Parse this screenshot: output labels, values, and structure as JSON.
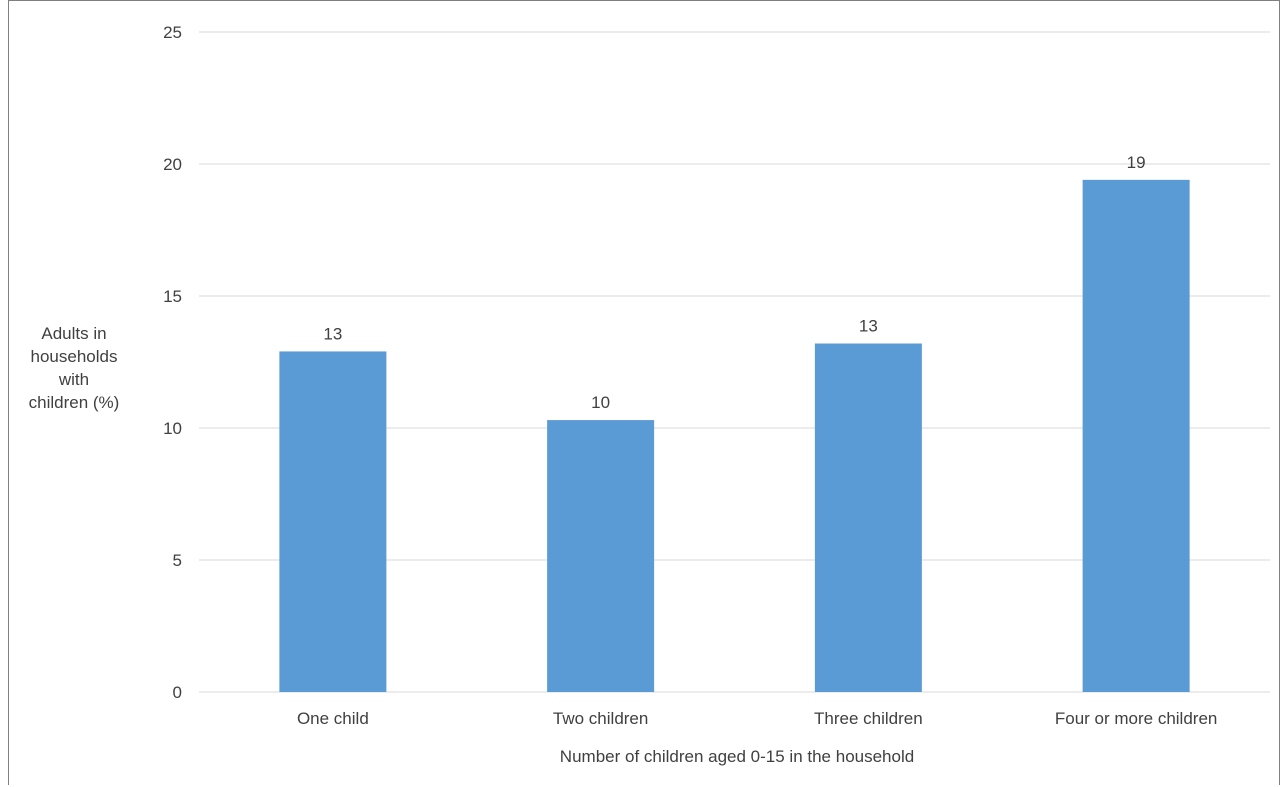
{
  "chart_data": {
    "type": "bar",
    "categories": [
      "One child",
      "Two children",
      "Three children",
      "Four or more children"
    ],
    "values": [
      12.9,
      10.3,
      13.2,
      19.4
    ],
    "data_labels": [
      "13",
      "10",
      "13",
      "19"
    ],
    "title": "",
    "xlabel": "Number of children aged 0-15 in the household",
    "ylabel_lines": [
      "Adults in",
      "households",
      "with",
      "children (%)"
    ],
    "ylim": [
      0,
      25
    ],
    "yticks": [
      0,
      5,
      10,
      15,
      20,
      25
    ],
    "grid": true,
    "legend": "none",
    "colors": {
      "bar": "#5b9bd5",
      "grid": "#d9d9d9",
      "text": "#404040",
      "frame": "#7f7f7f"
    }
  }
}
